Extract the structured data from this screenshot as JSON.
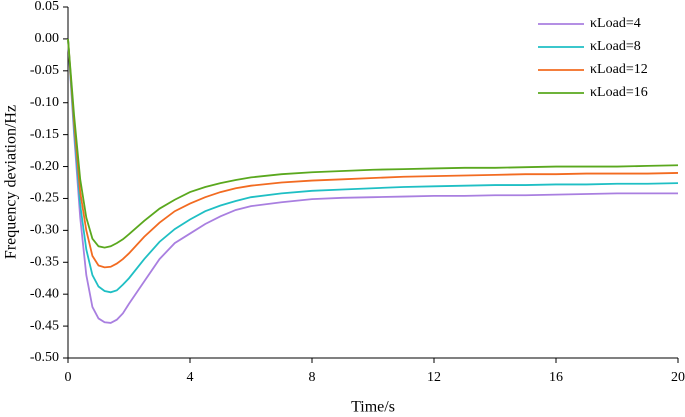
{
  "chart_data": {
    "type": "line",
    "xlabel": "Time/s",
    "ylabel": "Frequency deviation/Hz",
    "x": [
      0,
      0.2,
      0.4,
      0.6,
      0.8,
      1.0,
      1.2,
      1.4,
      1.6,
      1.8,
      2.0,
      2.5,
      3,
      3.5,
      4,
      4.5,
      5,
      5.5,
      6,
      7,
      8,
      9,
      10,
      11,
      12,
      13,
      14,
      15,
      16,
      17,
      18,
      19,
      20
    ],
    "series": [
      {
        "name": "κLoad=4",
        "color": "#a97fe0",
        "values": [
          0,
          -0.15,
          -0.28,
          -0.37,
          -0.42,
          -0.438,
          -0.444,
          -0.445,
          -0.44,
          -0.43,
          -0.415,
          -0.38,
          -0.345,
          -0.32,
          -0.305,
          -0.29,
          -0.278,
          -0.268,
          -0.262,
          -0.256,
          -0.251,
          -0.249,
          -0.248,
          -0.247,
          -0.246,
          -0.246,
          -0.245,
          -0.245,
          -0.244,
          -0.243,
          -0.242,
          -0.242,
          -0.242
        ]
      },
      {
        "name": "κLoad=8",
        "color": "#1fbfc4",
        "values": [
          0,
          -0.14,
          -0.26,
          -0.33,
          -0.37,
          -0.388,
          -0.395,
          -0.397,
          -0.394,
          -0.385,
          -0.375,
          -0.345,
          -0.318,
          -0.298,
          -0.283,
          -0.27,
          -0.261,
          -0.254,
          -0.248,
          -0.242,
          -0.238,
          -0.236,
          -0.234,
          -0.232,
          -0.231,
          -0.23,
          -0.229,
          -0.229,
          -0.228,
          -0.228,
          -0.227,
          -0.227,
          -0.226
        ]
      },
      {
        "name": "κLoad=12",
        "color": "#f26b21",
        "values": [
          0,
          -0.13,
          -0.24,
          -0.3,
          -0.34,
          -0.355,
          -0.358,
          -0.357,
          -0.352,
          -0.345,
          -0.336,
          -0.31,
          -0.288,
          -0.27,
          -0.258,
          -0.248,
          -0.24,
          -0.234,
          -0.23,
          -0.225,
          -0.222,
          -0.22,
          -0.218,
          -0.216,
          -0.215,
          -0.214,
          -0.213,
          -0.212,
          -0.212,
          -0.211,
          -0.211,
          -0.211,
          -0.21
        ]
      },
      {
        "name": "κLoad=16",
        "color": "#5aa81e",
        "values": [
          0,
          -0.12,
          -0.22,
          -0.28,
          -0.313,
          -0.325,
          -0.327,
          -0.325,
          -0.32,
          -0.314,
          -0.306,
          -0.285,
          -0.266,
          -0.252,
          -0.24,
          -0.232,
          -0.226,
          -0.221,
          -0.217,
          -0.212,
          -0.209,
          -0.207,
          -0.205,
          -0.204,
          -0.203,
          -0.202,
          -0.202,
          -0.201,
          -0.2,
          -0.2,
          -0.2,
          -0.199,
          -0.198
        ]
      }
    ],
    "xlim": [
      0,
      20
    ],
    "xticks": [
      0,
      4,
      8,
      12,
      16,
      20
    ],
    "ylim": [
      -0.5,
      0.05
    ],
    "yticks": [
      {
        "value": -0.5,
        "label": "-0.50"
      },
      {
        "value": -0.45,
        "label": "-0.45"
      },
      {
        "value": -0.4,
        "label": "-0.40"
      },
      {
        "value": -0.35,
        "label": "-0.35"
      },
      {
        "value": -0.3,
        "label": "-0.30"
      },
      {
        "value": -0.25,
        "label": "-0.25"
      },
      {
        "value": -0.2,
        "label": "-0.20"
      },
      {
        "value": -0.15,
        "label": "-0.15"
      },
      {
        "value": -0.1,
        "label": "-0.10"
      },
      {
        "value": -0.05,
        "label": "-0.05"
      },
      {
        "value": 0,
        "label": "0.00"
      },
      {
        "value": 0.05,
        "label": "0.05"
      }
    ],
    "grid": false,
    "legend": "upper right"
  }
}
